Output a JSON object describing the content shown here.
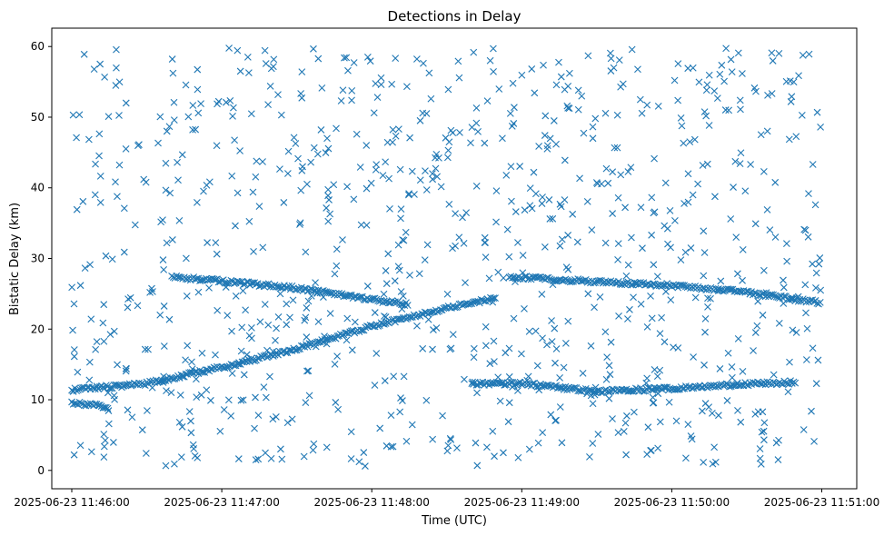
{
  "chart_data": {
    "type": "scatter",
    "title": "Detections in Delay",
    "xlabel": "Time (UTC)",
    "ylabel": "Bistatic Delay (km)",
    "marker": "x",
    "color": "#1f77b4",
    "xlim": [
      "2025-06-23 11:45:52",
      "2025-06-23 11:51:14"
    ],
    "ylim": [
      -2.6,
      62.6
    ],
    "x_ticks": [
      "2025-06-23 11:46:00",
      "2025-06-23 11:47:00",
      "2025-06-23 11:48:00",
      "2025-06-23 11:49:00",
      "2025-06-23 11:50:00",
      "2025-06-23 11:51:00"
    ],
    "y_ticks": [
      "0",
      "10",
      "20",
      "30",
      "40",
      "50",
      "60"
    ],
    "grid": false,
    "legend": "none",
    "tracks": [
      {
        "description_from_image": "rising track",
        "points": [
          [
            "2025-06-23 11:46:00",
            11.4
          ],
          [
            "2025-06-23 11:46:30",
            12.3
          ],
          [
            "2025-06-23 11:47:00",
            14.6
          ],
          [
            "2025-06-23 11:47:30",
            17.2
          ],
          [
            "2025-06-23 11:48:00",
            20.4
          ],
          [
            "2025-06-23 11:48:30",
            23.0
          ],
          [
            "2025-06-23 11:48:50",
            24.4
          ]
        ]
      },
      {
        "description_from_image": "upper segment A",
        "points": [
          [
            "2025-06-23 11:46:40",
            27.4
          ],
          [
            "2025-06-23 11:47:00",
            26.8
          ],
          [
            "2025-06-23 11:47:30",
            25.8
          ],
          [
            "2025-06-23 11:48:00",
            24.2
          ],
          [
            "2025-06-23 11:48:15",
            23.5
          ]
        ]
      },
      {
        "description_from_image": "upper segment B",
        "points": [
          [
            "2025-06-23 11:48:55",
            27.4
          ],
          [
            "2025-06-23 11:49:30",
            26.7
          ],
          [
            "2025-06-23 11:50:00",
            26.2
          ],
          [
            "2025-06-23 11:50:30",
            25.2
          ],
          [
            "2025-06-23 11:51:00",
            23.7
          ]
        ]
      },
      {
        "description_from_image": "lower track",
        "points": [
          [
            "2025-06-23 11:48:40",
            12.3
          ],
          [
            "2025-06-23 11:49:00",
            12.3
          ],
          [
            "2025-06-23 11:49:30",
            11.2
          ],
          [
            "2025-06-23 11:50:00",
            11.6
          ],
          [
            "2025-06-23 11:50:30",
            12.2
          ],
          [
            "2025-06-23 11:50:50",
            12.5
          ]
        ]
      },
      {
        "description_from_image": "short group near 9 km",
        "points": [
          [
            "2025-06-23 11:46:00",
            9.5
          ],
          [
            "2025-06-23 11:46:15",
            9.0
          ]
        ]
      }
    ],
    "clutter_points": 900
  }
}
